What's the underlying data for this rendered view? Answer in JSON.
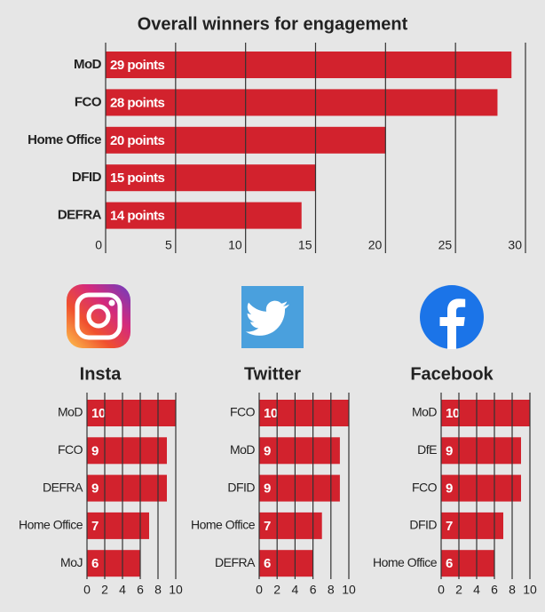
{
  "chart_data": [
    {
      "type": "bar",
      "title": "Overall winners for engagement",
      "categories": [
        "MoD",
        "FCO",
        "Home Office",
        "DFID",
        "DEFRA"
      ],
      "values": [
        29,
        28,
        20,
        15,
        14
      ],
      "value_labels": [
        "29 points",
        "28 points",
        "20 points",
        "15 points",
        "14 points"
      ],
      "xlim": [
        0,
        30
      ],
      "xticks": [
        0,
        5,
        10,
        15,
        20,
        25,
        30
      ],
      "grid": true,
      "color": "#d2222d"
    },
    {
      "type": "bar",
      "title": "Insta",
      "categories": [
        "MoD",
        "FCO",
        "DEFRA",
        "Home Office",
        "MoJ"
      ],
      "values": [
        10,
        9,
        9,
        7,
        6
      ],
      "xlim": [
        0,
        10
      ],
      "xticks": [
        0,
        2,
        4,
        6,
        8,
        10
      ],
      "grid": true,
      "color": "#d2222d"
    },
    {
      "type": "bar",
      "title": "Twitter",
      "categories": [
        "FCO",
        "MoD",
        "DFID",
        "Home Office",
        "DEFRA"
      ],
      "values": [
        10,
        9,
        9,
        7,
        6
      ],
      "xlim": [
        0,
        10
      ],
      "xticks": [
        0,
        2,
        4,
        6,
        8,
        10
      ],
      "grid": true,
      "color": "#d2222d"
    },
    {
      "type": "bar",
      "title": "Facebook",
      "categories": [
        "MoD",
        "DfE",
        "FCO",
        "DFID",
        "Home Office"
      ],
      "values": [
        10,
        9,
        9,
        7,
        6
      ],
      "xlim": [
        0,
        10
      ],
      "xticks": [
        0,
        2,
        4,
        6,
        8,
        10
      ],
      "grid": true,
      "color": "#d2222d"
    }
  ]
}
